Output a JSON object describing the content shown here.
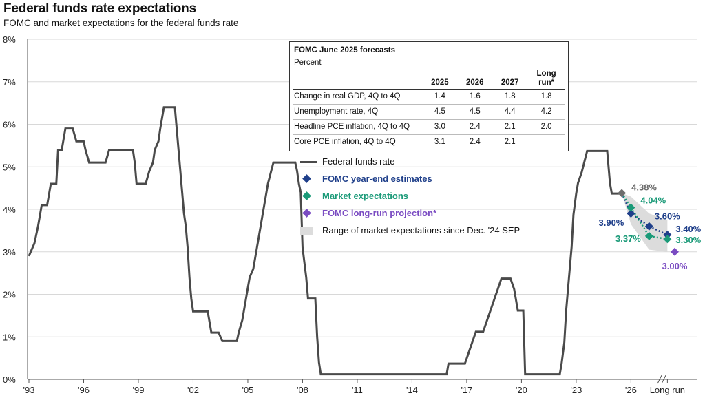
{
  "title": "Federal funds rate expectations",
  "subtitle": "FOMC and market expectations for the federal funds rate",
  "colors": {
    "fed_funds": "#4a4a4a",
    "fomc": "#1f3f8a",
    "market": "#1a9a78",
    "longrun": "#7a4bc2",
    "range": "#dcdcdc",
    "annotation_gray": "#6d6d6d"
  },
  "table": {
    "title": "FOMC June 2025 forecasts",
    "unit": "Percent",
    "columns": [
      "2025",
      "2026",
      "2027",
      "Long run*"
    ],
    "rows": [
      {
        "label": "Change in real GDP, 4Q to 4Q",
        "values": [
          "1.4",
          "1.6",
          "1.8",
          "1.8"
        ]
      },
      {
        "label": "Unemployment rate, 4Q",
        "values": [
          "4.5",
          "4.5",
          "4.4",
          "4.2"
        ]
      },
      {
        "label": "Headline PCE inflation, 4Q to 4Q",
        "values": [
          "3.0",
          "2.4",
          "2.1",
          "2.0"
        ]
      },
      {
        "label": "Core PCE inflation, 4Q to 4Q",
        "values": [
          "3.1",
          "2.4",
          "2.1",
          ""
        ]
      }
    ]
  },
  "legend": [
    {
      "label": "Federal funds rate",
      "marker": "line",
      "color_key": "fed_funds"
    },
    {
      "label": "FOMC year-end estimates",
      "marker": "diamond",
      "color_key": "fomc"
    },
    {
      "label": "Market expectations",
      "marker": "diamond",
      "color_key": "market"
    },
    {
      "label": "FOMC long-run projection*",
      "marker": "diamond",
      "color_key": "longrun"
    },
    {
      "label": "Range of market expectations since Dec. '24 SEP",
      "marker": "rect",
      "color_key": "range"
    }
  ],
  "chart_data": {
    "type": "line",
    "title": "Federal funds rate expectations",
    "subtitle": "FOMC and market expectations for the federal funds rate",
    "xlabel": "",
    "ylabel": "",
    "ylim": [
      0,
      8
    ],
    "xlim": [
      1993,
      2028.4
    ],
    "y_ticks": [
      "0%",
      "1%",
      "2%",
      "3%",
      "4%",
      "5%",
      "6%",
      "7%",
      "8%"
    ],
    "x_ticks": [
      {
        "x": 1993,
        "label": "'93"
      },
      {
        "x": 1996,
        "label": "'96"
      },
      {
        "x": 1999,
        "label": "'99"
      },
      {
        "x": 2002,
        "label": "'02"
      },
      {
        "x": 2005,
        "label": "'05"
      },
      {
        "x": 2008,
        "label": "'08"
      },
      {
        "x": 2011,
        "label": "'11"
      },
      {
        "x": 2014,
        "label": "'14"
      },
      {
        "x": 2017,
        "label": "'17"
      },
      {
        "x": 2020,
        "label": "'20"
      },
      {
        "x": 2023,
        "label": "'23"
      },
      {
        "x": 2026,
        "label": "'26"
      },
      {
        "x": 2028,
        "label": "Long run"
      }
    ],
    "grid": true,
    "legend_position": "upper-middle",
    "series": [
      {
        "name": "Federal funds rate",
        "color_key": "fed_funds",
        "points": [
          [
            1993.0,
            2.9
          ],
          [
            1993.3,
            3.2
          ],
          [
            1993.5,
            3.6
          ],
          [
            1993.7,
            4.1
          ],
          [
            1994.0,
            4.1
          ],
          [
            1994.2,
            4.6
          ],
          [
            1994.5,
            4.6
          ],
          [
            1994.6,
            5.4
          ],
          [
            1994.8,
            5.4
          ],
          [
            1995.0,
            5.9
          ],
          [
            1995.4,
            5.9
          ],
          [
            1995.6,
            5.6
          ],
          [
            1996.0,
            5.6
          ],
          [
            1996.1,
            5.4
          ],
          [
            1996.3,
            5.1
          ],
          [
            1997.2,
            5.1
          ],
          [
            1997.4,
            5.4
          ],
          [
            1998.7,
            5.4
          ],
          [
            1998.8,
            5.1
          ],
          [
            1998.9,
            4.6
          ],
          [
            1999.4,
            4.6
          ],
          [
            1999.6,
            4.9
          ],
          [
            1999.8,
            5.1
          ],
          [
            1999.9,
            5.4
          ],
          [
            2000.1,
            5.6
          ],
          [
            2000.2,
            5.9
          ],
          [
            2000.4,
            6.4
          ],
          [
            2001.0,
            6.4
          ],
          [
            2001.1,
            5.9
          ],
          [
            2001.2,
            5.4
          ],
          [
            2001.3,
            4.9
          ],
          [
            2001.4,
            4.4
          ],
          [
            2001.5,
            3.9
          ],
          [
            2001.6,
            3.6
          ],
          [
            2001.7,
            3.1
          ],
          [
            2001.8,
            2.4
          ],
          [
            2001.9,
            1.9
          ],
          [
            2002.0,
            1.6
          ],
          [
            2002.8,
            1.6
          ],
          [
            2003.0,
            1.1
          ],
          [
            2003.4,
            1.1
          ],
          [
            2003.6,
            0.9
          ],
          [
            2004.4,
            0.9
          ],
          [
            2004.5,
            1.1
          ],
          [
            2004.7,
            1.4
          ],
          [
            2004.9,
            1.9
          ],
          [
            2005.1,
            2.4
          ],
          [
            2005.3,
            2.6
          ],
          [
            2005.5,
            3.1
          ],
          [
            2005.7,
            3.6
          ],
          [
            2005.9,
            4.1
          ],
          [
            2006.1,
            4.6
          ],
          [
            2006.4,
            5.1
          ],
          [
            2007.6,
            5.1
          ],
          [
            2007.7,
            4.9
          ],
          [
            2007.8,
            4.6
          ],
          [
            2007.9,
            4.4
          ],
          [
            2008.0,
            3.1
          ],
          [
            2008.2,
            2.4
          ],
          [
            2008.3,
            1.9
          ],
          [
            2008.7,
            1.9
          ],
          [
            2008.8,
            1.0
          ],
          [
            2008.9,
            0.4
          ],
          [
            2009.0,
            0.12
          ],
          [
            2015.9,
            0.12
          ],
          [
            2016.0,
            0.37
          ],
          [
            2016.9,
            0.37
          ],
          [
            2017.1,
            0.62
          ],
          [
            2017.3,
            0.87
          ],
          [
            2017.5,
            1.12
          ],
          [
            2017.9,
            1.12
          ],
          [
            2018.1,
            1.37
          ],
          [
            2018.3,
            1.62
          ],
          [
            2018.5,
            1.87
          ],
          [
            2018.7,
            2.12
          ],
          [
            2018.9,
            2.37
          ],
          [
            2019.4,
            2.37
          ],
          [
            2019.6,
            2.12
          ],
          [
            2019.7,
            1.87
          ],
          [
            2019.8,
            1.62
          ],
          [
            2020.1,
            1.62
          ],
          [
            2020.2,
            0.12
          ],
          [
            2022.1,
            0.12
          ],
          [
            2022.2,
            0.37
          ],
          [
            2022.35,
            0.87
          ],
          [
            2022.45,
            1.62
          ],
          [
            2022.6,
            2.37
          ],
          [
            2022.75,
            3.12
          ],
          [
            2022.85,
            3.87
          ],
          [
            2023.0,
            4.37
          ],
          [
            2023.1,
            4.62
          ],
          [
            2023.3,
            4.87
          ],
          [
            2023.45,
            5.12
          ],
          [
            2023.6,
            5.37
          ],
          [
            2024.7,
            5.37
          ],
          [
            2024.8,
            4.87
          ],
          [
            2024.85,
            4.62
          ],
          [
            2024.95,
            4.37
          ],
          [
            2025.45,
            4.37
          ]
        ]
      },
      {
        "name": "FOMC year-end estimates",
        "color_key": "fomc",
        "points": [
          [
            2025.5,
            4.38
          ],
          [
            2026.0,
            3.9
          ],
          [
            2027.0,
            3.6
          ],
          [
            2028.0,
            3.4
          ]
        ],
        "labels": [
          "4.38%",
          "3.90%",
          "3.60%",
          "3.40%"
        ]
      },
      {
        "name": "Market expectations",
        "color_key": "market",
        "points": [
          [
            2025.5,
            4.38
          ],
          [
            2026.0,
            4.04
          ],
          [
            2027.0,
            3.37
          ],
          [
            2028.0,
            3.3
          ]
        ],
        "labels": [
          "",
          "4.04%",
          "3.37%",
          "3.30%"
        ]
      },
      {
        "name": "FOMC long-run projection*",
        "color_key": "longrun",
        "points": [
          [
            2028.4,
            3.0
          ]
        ],
        "labels": [
          "3.00%"
        ]
      }
    ],
    "range_band": {
      "name": "Range of market expectations since Dec. '24 SEP",
      "upper": [
        [
          2025.5,
          4.38
        ],
        [
          2026.0,
          4.3
        ],
        [
          2027.0,
          3.9
        ],
        [
          2028.0,
          3.75
        ]
      ],
      "lower": [
        [
          2025.5,
          4.38
        ],
        [
          2026.0,
          3.65
        ],
        [
          2027.0,
          3.05
        ],
        [
          2028.0,
          3.0
        ]
      ]
    }
  }
}
